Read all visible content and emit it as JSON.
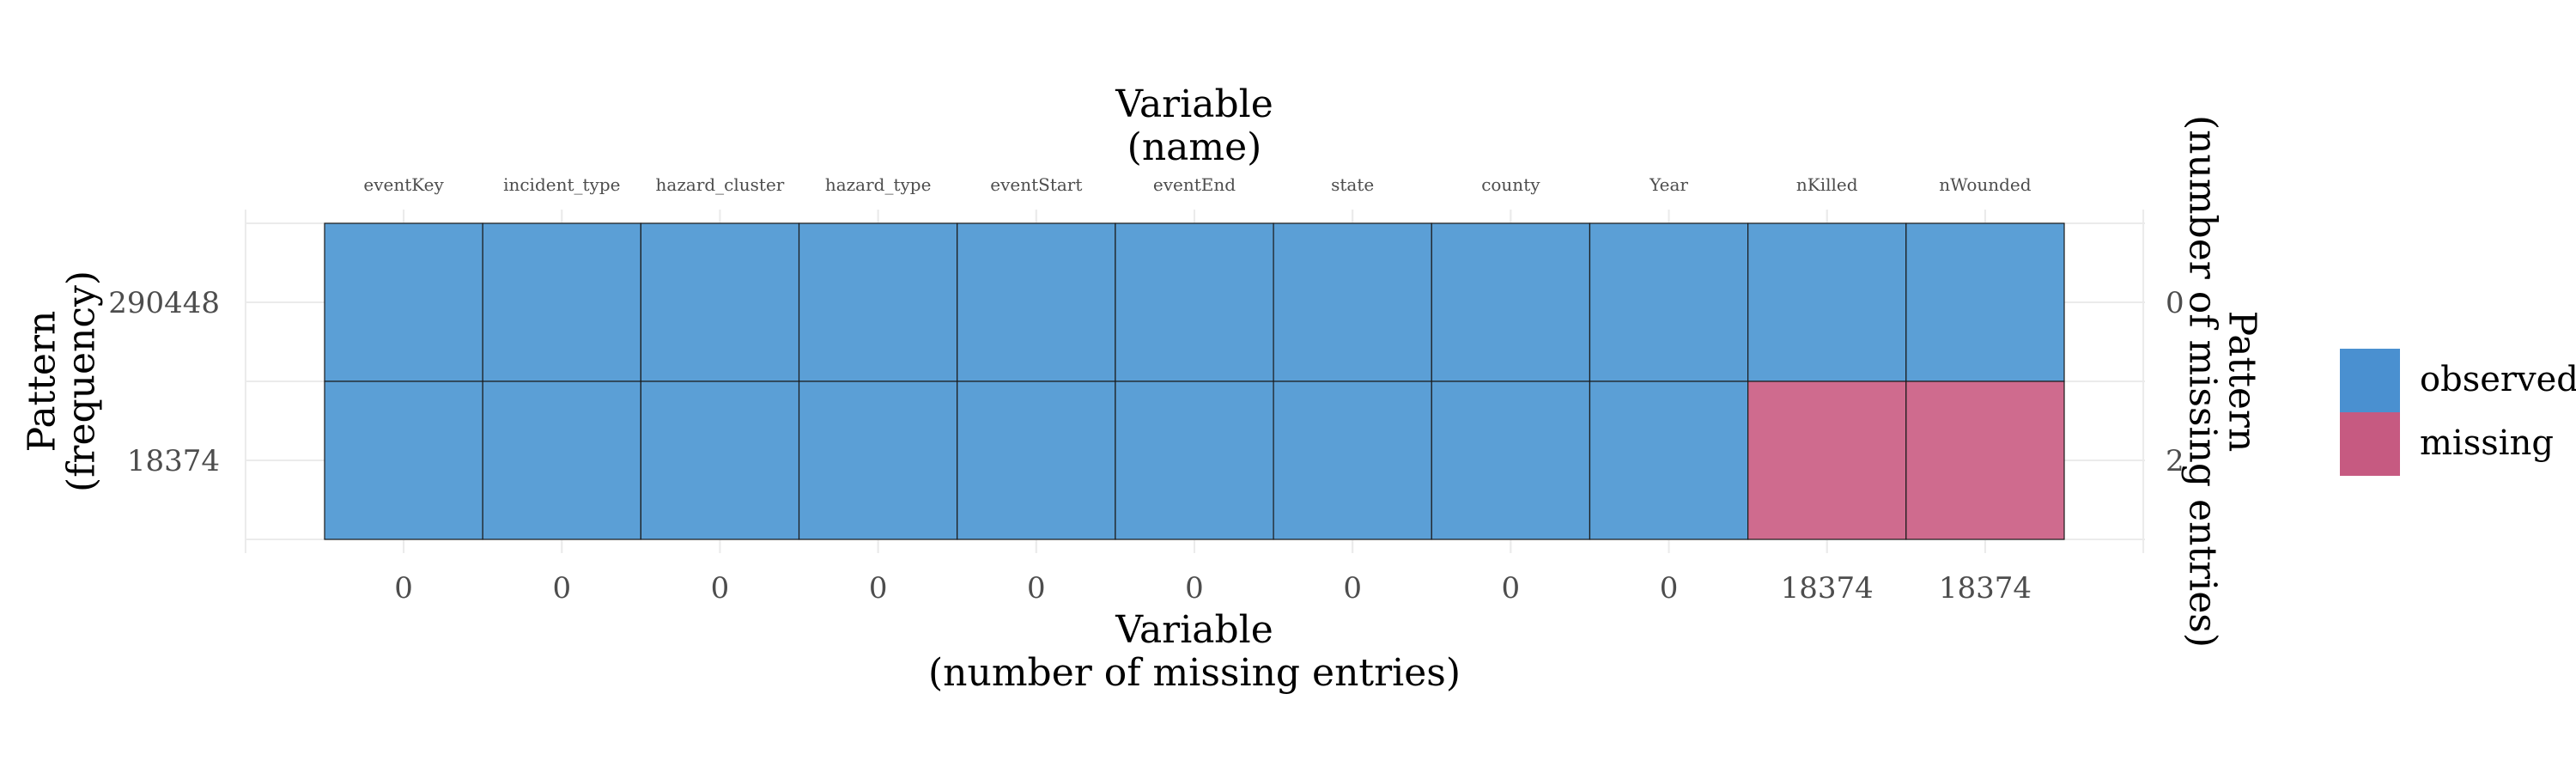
{
  "chart_data": {
    "type": "heatmap",
    "title": "",
    "top_axis_label": [
      "Variable",
      "(name)"
    ],
    "bottom_axis_label": [
      "Variable",
      "(number of missing entries)"
    ],
    "left_axis_label": [
      "Pattern",
      "(frequency)"
    ],
    "right_axis_label": [
      "Pattern",
      "(number of missing entries)"
    ],
    "variables": [
      "eventKey",
      "incident_type",
      "hazard_cluster",
      "hazard_type",
      "eventStart",
      "eventEnd",
      "state",
      "county",
      "Year",
      "nKilled",
      "nWounded"
    ],
    "missing_counts": [
      "0",
      "0",
      "0",
      "0",
      "0",
      "0",
      "0",
      "0",
      "0",
      "18374",
      "18374"
    ],
    "patterns": [
      {
        "frequency": "290448",
        "n_missing": "0",
        "cells": [
          "observed",
          "observed",
          "observed",
          "observed",
          "observed",
          "observed",
          "observed",
          "observed",
          "observed",
          "observed",
          "observed"
        ]
      },
      {
        "frequency": "18374",
        "n_missing": "2",
        "cells": [
          "observed",
          "observed",
          "observed",
          "observed",
          "observed",
          "observed",
          "observed",
          "observed",
          "observed",
          "missing",
          "missing"
        ]
      }
    ],
    "legend": {
      "position": "right",
      "entries": [
        {
          "key": "observed",
          "label": "observed",
          "color": "#4a90d0"
        },
        {
          "key": "missing",
          "label": "missing",
          "color": "#c65a81"
        }
      ]
    },
    "grid": true,
    "colors": {
      "observed": "#5b9fd6",
      "missing": "#cf6b8e",
      "cell_border": "#1a1a1a",
      "grid": "#ebebeb"
    }
  }
}
